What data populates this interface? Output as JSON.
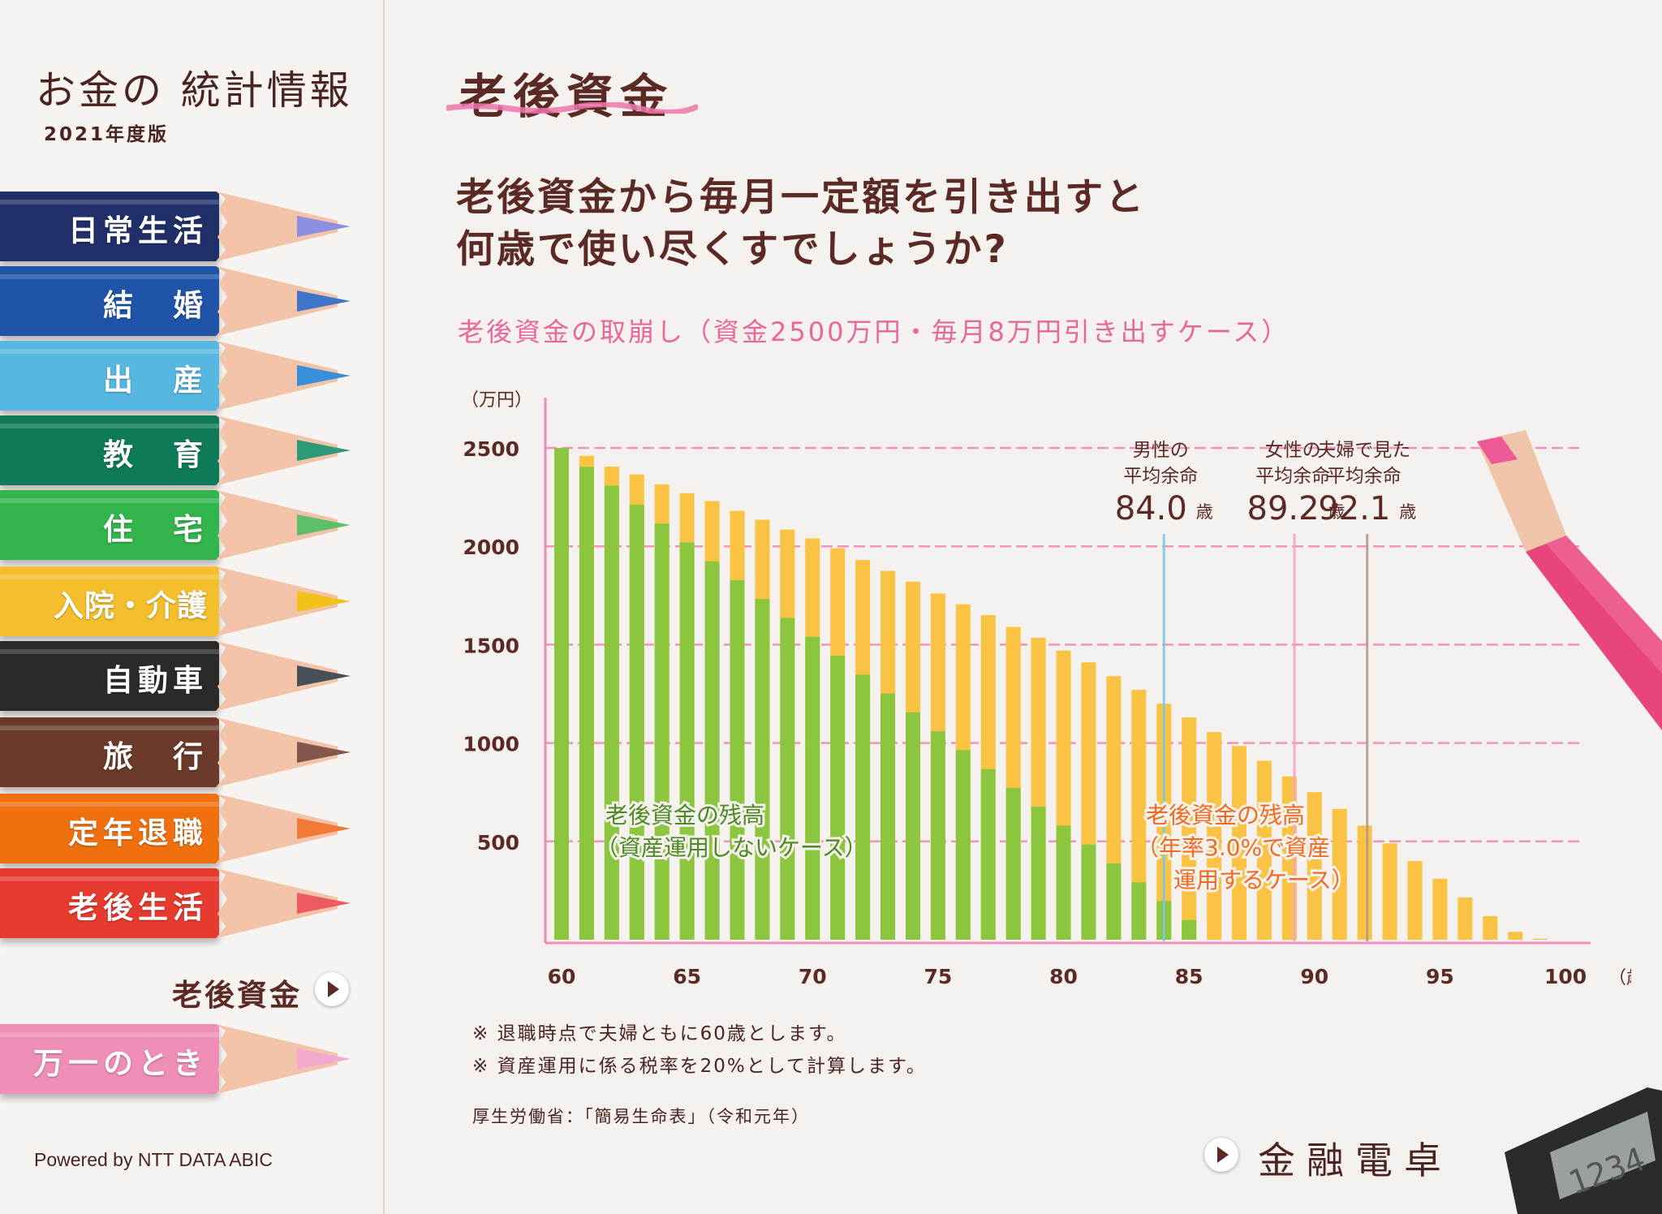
{
  "sidebar": {
    "brand_title": "お金の 統計情報",
    "brand_sub": "2021年度版",
    "items": [
      {
        "label": "日常生活",
        "color": "#22306a",
        "tip": "#8d8ee0"
      },
      {
        "label": "結　婚",
        "color": "#1f54a9",
        "tip": "#3e74c9"
      },
      {
        "label": "出　産",
        "color": "#56b8e0",
        "tip": "#3a90d8"
      },
      {
        "label": "教　育",
        "color": "#0f7a5a",
        "tip": "#2f9a78"
      },
      {
        "label": "住　宅",
        "color": "#33b54d",
        "tip": "#5fbe6a"
      },
      {
        "label": "入院・介護",
        "color": "#f4bf2c",
        "tip": "#f2c21b"
      },
      {
        "label": "自動車",
        "color": "#2a2a2a",
        "tip": "#4a5058"
      },
      {
        "label": "旅　行",
        "color": "#6b3a2a",
        "tip": "#85574c"
      },
      {
        "label": "定年退職",
        "color": "#f0700f",
        "tip": "#f27a34"
      },
      {
        "label": "老後生活",
        "color": "#e63b2e",
        "tip": "#ee5a64"
      },
      {
        "label": "万一のとき",
        "color": "#ef8fb8",
        "tip": "#f2a9ce"
      }
    ],
    "sub_item": "老後資金",
    "powered": "Powered by NTT DATA ABIC"
  },
  "main": {
    "page_title": "老後資金",
    "question": "老後資金から毎月一定額を引き出すと\n何歳で使い尽くすでしょうか?",
    "subtitle": "老後資金の取崩し（資金2500万円・毎月8万円引き出すケース）",
    "note1": "※ 退職時点で夫婦ともに60歳とします。",
    "note2": "※ 資産運用に係る税率を20%として計算します。",
    "source": "厚生労働省：「簡易生命表」（令和元年）",
    "calc_label": "金融電卓"
  },
  "colors": {
    "green": "#8cc63f",
    "orange": "#fbc344",
    "pink_grid": "#ee76ac",
    "blue_line": "#7cc7e4",
    "pink_line": "#f3a6c6",
    "brown_line": "#b39a8a"
  },
  "chart_data": {
    "type": "bar",
    "ylabel": "（万円）",
    "xunit": "（歳）",
    "ylim": [
      0,
      2500
    ],
    "yticks": [
      500,
      1000,
      1500,
      2000,
      2500
    ],
    "xticks": [
      60,
      65,
      70,
      75,
      80,
      85,
      90,
      95,
      100
    ],
    "x": [
      60,
      61,
      62,
      63,
      64,
      65,
      66,
      67,
      68,
      69,
      70,
      71,
      72,
      73,
      74,
      75,
      76,
      77,
      78,
      79,
      80,
      81,
      82,
      83,
      84,
      85,
      86,
      87,
      88,
      89,
      90,
      91,
      92,
      93,
      94,
      95,
      96,
      97,
      98,
      99,
      100
    ],
    "series": [
      {
        "name": "老後資金の残高（資産運用しないケース）",
        "values": [
          2500,
          2404,
          2308,
          2212,
          2116,
          2020,
          1924,
          1828,
          1732,
          1636,
          1540,
          1444,
          1348,
          1252,
          1156,
          1060,
          964,
          868,
          772,
          676,
          580,
          484,
          388,
          292,
          196,
          100,
          0,
          0,
          0,
          0,
          0,
          0,
          0,
          0,
          0,
          0,
          0,
          0,
          0,
          0,
          0
        ]
      },
      {
        "name": "老後資金の残高（年率3.0%で資産運用するケース）",
        "values": [
          2500,
          2460,
          2405,
          2365,
          2315,
          2270,
          2230,
          2180,
          2135,
          2085,
          2040,
          1990,
          1930,
          1875,
          1820,
          1760,
          1705,
          1650,
          1590,
          1535,
          1470,
          1410,
          1340,
          1270,
          1200,
          1130,
          1055,
          985,
          910,
          830,
          750,
          665,
          580,
          490,
          400,
          310,
          215,
          120,
          40,
          5,
          0
        ]
      }
    ],
    "annotations": [
      {
        "line1": "男性の",
        "line2": "平均余命",
        "value": "84.0",
        "unit": "歳",
        "x": 84.0
      },
      {
        "line1": "女性の",
        "line2": "平均余命",
        "value": "89.2",
        "unit": "歳",
        "x": 89.2
      },
      {
        "line1": "夫婦で見た",
        "line2": "平均余命",
        "value": "92.1",
        "unit": "歳",
        "x": 92.1
      }
    ],
    "series_labels": [
      {
        "line1": "老後資金の残高",
        "line2": "（資産運用しないケース）"
      },
      {
        "line1": "老後資金の残高",
        "line2": "（年率3.0%で資産",
        "line3": "運用するケース）"
      }
    ]
  }
}
